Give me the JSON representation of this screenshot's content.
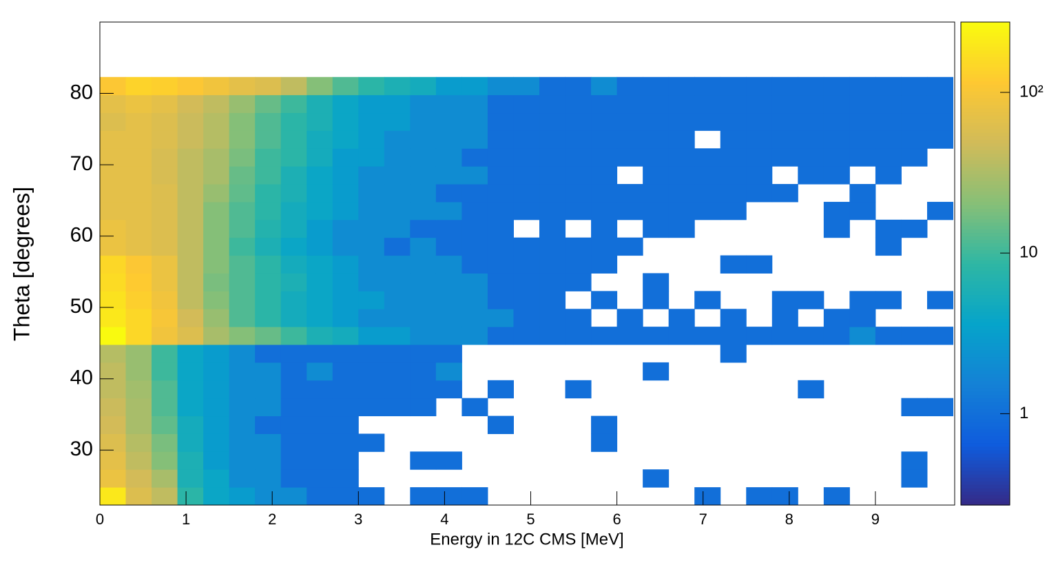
{
  "chart_data": {
    "type": "heatmap",
    "xlabel": "Energy in 12C CMS [MeV]",
    "ylabel": "Theta [degrees]",
    "xlim": [
      0,
      9.92
    ],
    "ylim": [
      22.3,
      90
    ],
    "xticks": [
      0,
      1,
      2,
      3,
      4,
      5,
      6,
      7,
      8,
      9
    ],
    "yticks": [
      30,
      40,
      50,
      60,
      70,
      80
    ],
    "zlim": [
      0.27,
      274
    ],
    "zticks": [
      1,
      10,
      {
        "value": 100,
        "label": "10²"
      }
    ],
    "zlog": true,
    "palette": [
      "#352a87",
      "#0f5cdd",
      "#1481d6",
      "#06a4ca",
      "#2eb7a4",
      "#87bf77",
      "#d1bb59",
      "#fec832",
      "#f9fb0e"
    ],
    "xbins": [
      0,
      0.3,
      0.6,
      0.9,
      1.2,
      1.5,
      1.8,
      2.1,
      2.4,
      2.7,
      3.0,
      3.3,
      3.6,
      3.9,
      4.2,
      4.5,
      4.8,
      5.1,
      5.4,
      5.7,
      6.0,
      6.3,
      6.6,
      6.9,
      7.2,
      7.5,
      7.8,
      8.1,
      8.4,
      8.7,
      9.0,
      9.3,
      9.6,
      9.9
    ],
    "ybins": [
      22.3,
      24.8,
      27.3,
      29.8,
      32.3,
      34.8,
      37.3,
      39.8,
      42.3,
      44.8,
      47.3,
      49.8,
      52.3,
      54.8,
      57.3,
      59.8,
      62.3,
      64.8,
      67.3,
      69.8,
      72.3,
      74.8,
      77.3,
      79.8,
      82.3
    ],
    "values": [
      [
        200,
        60,
        40,
        8,
        4,
        3,
        2,
        2,
        1,
        1,
        1,
        null,
        1,
        1,
        1,
        null,
        null,
        null,
        null,
        null,
        null,
        null,
        null,
        1,
        null,
        1,
        1,
        null,
        1,
        null,
        null,
        null,
        null
      ],
      [
        80,
        50,
        30,
        6,
        4,
        2,
        2,
        1,
        1,
        1,
        null,
        null,
        null,
        null,
        null,
        null,
        null,
        null,
        null,
        null,
        null,
        1,
        null,
        null,
        null,
        null,
        null,
        null,
        null,
        null,
        null,
        1,
        null
      ],
      [
        70,
        40,
        20,
        6,
        3,
        2,
        2,
        1,
        1,
        1,
        null,
        null,
        1,
        1,
        null,
        null,
        null,
        null,
        null,
        null,
        null,
        null,
        null,
        null,
        null,
        null,
        null,
        null,
        null,
        null,
        null,
        1,
        null
      ],
      [
        60,
        35,
        18,
        5,
        3,
        2,
        2,
        1,
        1,
        1,
        1,
        null,
        null,
        null,
        null,
        null,
        null,
        null,
        null,
        1,
        null,
        null,
        null,
        null,
        null,
        null,
        null,
        null,
        null,
        null,
        null,
        null,
        null
      ],
      [
        50,
        30,
        14,
        5,
        3,
        2,
        1,
        1,
        1,
        1,
        null,
        null,
        null,
        null,
        null,
        1,
        null,
        null,
        null,
        1,
        null,
        null,
        null,
        null,
        null,
        null,
        null,
        null,
        null,
        null,
        null,
        null,
        null
      ],
      [
        45,
        30,
        12,
        4,
        3,
        2,
        2,
        1,
        1,
        1,
        1,
        1,
        1,
        null,
        1,
        null,
        null,
        null,
        null,
        null,
        null,
        null,
        null,
        null,
        null,
        null,
        null,
        null,
        null,
        null,
        null,
        1,
        1
      ],
      [
        40,
        28,
        12,
        4,
        3,
        2,
        2,
        1,
        1,
        1,
        1,
        1,
        1,
        1,
        null,
        1,
        null,
        null,
        1,
        null,
        null,
        null,
        null,
        null,
        null,
        null,
        null,
        1,
        null,
        null,
        null,
        null,
        null
      ],
      [
        40,
        25,
        10,
        4,
        3,
        2,
        2,
        1,
        2,
        1,
        1,
        1,
        1,
        2,
        null,
        null,
        null,
        null,
        null,
        null,
        null,
        1,
        null,
        null,
        null,
        null,
        null,
        null,
        null,
        null,
        null,
        null,
        null
      ],
      [
        35,
        25,
        10,
        4,
        3,
        2,
        1,
        1,
        1,
        1,
        1,
        1,
        1,
        1,
        null,
        null,
        null,
        null,
        null,
        null,
        null,
        null,
        null,
        null,
        1,
        null,
        null,
        null,
        null,
        null,
        null,
        null,
        null
      ],
      [
        270,
        150,
        90,
        60,
        30,
        20,
        15,
        10,
        6,
        5,
        3,
        3,
        2,
        2,
        2,
        1,
        1,
        1,
        1,
        1,
        1,
        1,
        1,
        1,
        1,
        1,
        1,
        1,
        1,
        2,
        1,
        1,
        1
      ],
      [
        200,
        150,
        100,
        50,
        25,
        12,
        8,
        5,
        4,
        3,
        2,
        2,
        2,
        2,
        2,
        2,
        1,
        1,
        1,
        null,
        1,
        null,
        1,
        null,
        1,
        null,
        1,
        null,
        1,
        1,
        null,
        null,
        null
      ],
      [
        180,
        130,
        90,
        40,
        20,
        12,
        8,
        5,
        4,
        3,
        3,
        2,
        2,
        2,
        2,
        1,
        1,
        1,
        null,
        1,
        null,
        1,
        null,
        1,
        null,
        null,
        1,
        1,
        null,
        1,
        1,
        null,
        1
      ],
      [
        160,
        120,
        80,
        40,
        18,
        12,
        8,
        6,
        4,
        3,
        2,
        2,
        2,
        2,
        2,
        1,
        1,
        1,
        1,
        null,
        null,
        1,
        null,
        null,
        null,
        null,
        null,
        null,
        null,
        null,
        null,
        null,
        null
      ],
      [
        150,
        110,
        80,
        40,
        20,
        12,
        8,
        5,
        4,
        3,
        2,
        2,
        2,
        2,
        1,
        1,
        1,
        1,
        1,
        1,
        null,
        null,
        null,
        null,
        1,
        1,
        null,
        null,
        null,
        null,
        null,
        null,
        null
      ],
      [
        80,
        70,
        60,
        40,
        20,
        10,
        6,
        4,
        3,
        2,
        2,
        1,
        2,
        1,
        1,
        1,
        1,
        1,
        1,
        1,
        1,
        null,
        null,
        null,
        null,
        null,
        null,
        null,
        null,
        null,
        1,
        null,
        null
      ],
      [
        80,
        70,
        60,
        40,
        20,
        12,
        7,
        5,
        3,
        2,
        2,
        2,
        1,
        1,
        1,
        1,
        null,
        1,
        null,
        1,
        null,
        1,
        1,
        null,
        null,
        null,
        null,
        null,
        1,
        null,
        1,
        1,
        null
      ],
      [
        70,
        70,
        60,
        40,
        20,
        12,
        8,
        5,
        4,
        3,
        2,
        2,
        2,
        2,
        1,
        1,
        1,
        1,
        1,
        1,
        1,
        1,
        1,
        1,
        1,
        null,
        null,
        null,
        1,
        1,
        null,
        null,
        1
      ],
      [
        70,
        70,
        60,
        40,
        25,
        14,
        8,
        6,
        4,
        3,
        2,
        2,
        2,
        1,
        1,
        1,
        1,
        1,
        1,
        1,
        1,
        1,
        1,
        1,
        1,
        1,
        1,
        null,
        null,
        1,
        null,
        null,
        null
      ],
      [
        70,
        70,
        55,
        40,
        30,
        15,
        10,
        6,
        4,
        3,
        2,
        2,
        2,
        2,
        2,
        1,
        1,
        1,
        1,
        1,
        null,
        1,
        1,
        1,
        1,
        1,
        null,
        1,
        1,
        null,
        1,
        null,
        null
      ],
      [
        70,
        70,
        55,
        40,
        30,
        18,
        10,
        8,
        5,
        3,
        3,
        2,
        2,
        2,
        1,
        1,
        1,
        1,
        1,
        1,
        1,
        1,
        1,
        1,
        1,
        1,
        1,
        1,
        1,
        1,
        1,
        1,
        null
      ],
      [
        70,
        70,
        60,
        45,
        35,
        20,
        12,
        8,
        5,
        4,
        3,
        2,
        2,
        2,
        2,
        1,
        1,
        1,
        1,
        1,
        1,
        1,
        1,
        null,
        1,
        1,
        1,
        1,
        1,
        1,
        1,
        1,
        1
      ],
      [
        60,
        70,
        60,
        45,
        35,
        20,
        12,
        8,
        6,
        4,
        3,
        3,
        2,
        2,
        2,
        1,
        1,
        1,
        1,
        1,
        1,
        1,
        1,
        1,
        1,
        1,
        1,
        1,
        1,
        1,
        1,
        1,
        1
      ],
      [
        70,
        80,
        70,
        50,
        40,
        25,
        15,
        10,
        6,
        4,
        3,
        3,
        2,
        2,
        2,
        1,
        1,
        1,
        1,
        1,
        1,
        1,
        1,
        1,
        1,
        1,
        1,
        1,
        1,
        1,
        1,
        1,
        1
      ],
      [
        110,
        140,
        130,
        110,
        90,
        70,
        60,
        40,
        20,
        12,
        8,
        6,
        5,
        3,
        3,
        2,
        2,
        1,
        1,
        2,
        1,
        1,
        1,
        1,
        1,
        1,
        1,
        1,
        1,
        1,
        1,
        1,
        1
      ]
    ]
  }
}
